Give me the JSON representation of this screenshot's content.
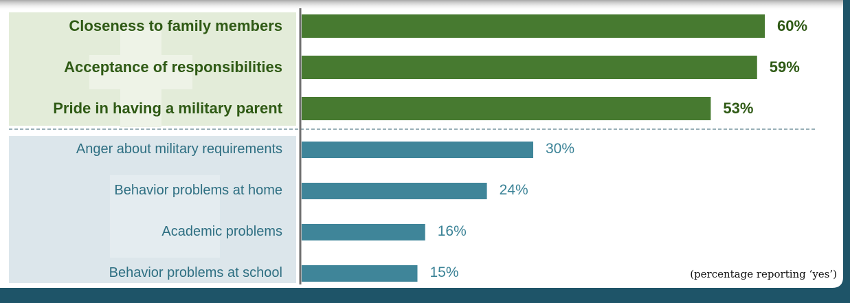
{
  "chart_data": {
    "type": "bar",
    "orientation": "horizontal",
    "categories": [
      "Closeness to family members",
      "Acceptance of responsibilities",
      "Pride in having a military parent",
      "Anger about military requirements",
      "Behavior problems at home",
      "Academic problems",
      "Behavior problems at school"
    ],
    "values": [
      60,
      59,
      53,
      30,
      24,
      16,
      15
    ],
    "value_labels": [
      "60%",
      "59%",
      "53%",
      "30%",
      "24%",
      "16%",
      "15%"
    ],
    "groups": [
      "positive",
      "positive",
      "positive",
      "negative",
      "negative",
      "negative",
      "negative"
    ],
    "xlim": [
      0,
      60
    ],
    "annotation": "(percentage reporting ‘yes’)",
    "colors": {
      "positive_bar": "#477a30",
      "negative_bar": "#3f8599",
      "positive_text": "#2f5a15",
      "negative_text": "#2e6f82",
      "frame": "#1e5468"
    }
  }
}
